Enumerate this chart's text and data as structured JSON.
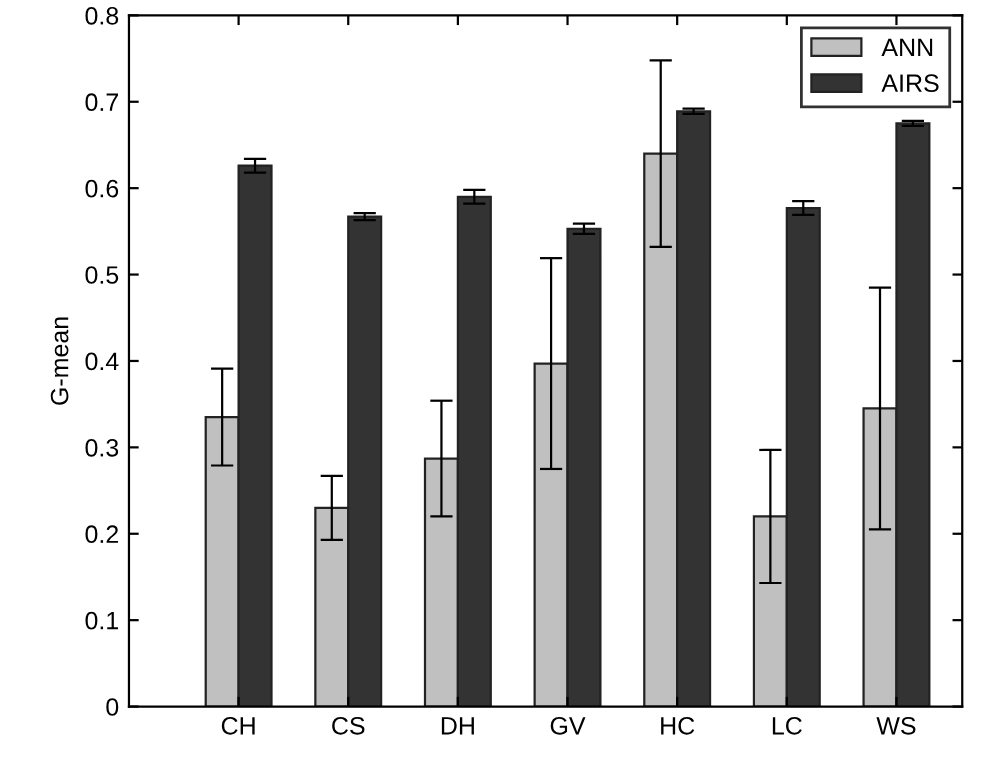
{
  "chart_data": {
    "type": "bar",
    "ylabel": "G-mean",
    "categories": [
      "CH",
      "CS",
      "DH",
      "GV",
      "HC",
      "LC",
      "WS"
    ],
    "series": [
      {
        "name": "ANN",
        "color": "#c0c0c0",
        "values": [
          0.335,
          0.23,
          0.287,
          0.397,
          0.64,
          0.22,
          0.345
        ],
        "errors": [
          0.056,
          0.037,
          0.067,
          0.122,
          0.108,
          0.077,
          0.14
        ]
      },
      {
        "name": "AIRS",
        "color": "#333333",
        "values": [
          0.626,
          0.567,
          0.59,
          0.553,
          0.689,
          0.577,
          0.675
        ],
        "errors": [
          0.008,
          0.004,
          0.008,
          0.006,
          0.003,
          0.008,
          0.003
        ]
      }
    ],
    "ylim": [
      0,
      0.8
    ],
    "yticks": [
      0,
      0.1,
      0.2,
      0.3,
      0.4,
      0.5,
      0.6,
      0.7,
      0.8
    ],
    "grid": false,
    "legend": "top right"
  }
}
